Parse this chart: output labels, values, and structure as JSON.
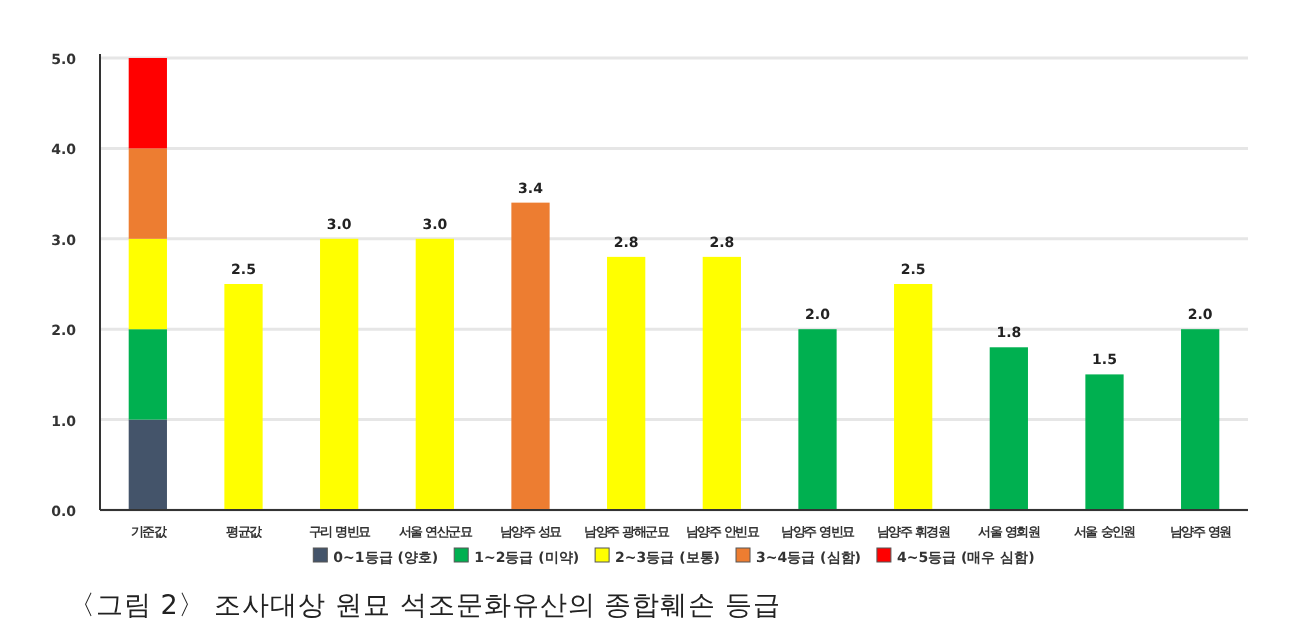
{
  "chart_data": {
    "type": "bar",
    "stacked": true,
    "categories": [
      "기준값",
      "평균값",
      "구리 명빈묘",
      "서울 연산군묘",
      "남양주 성묘",
      "남양주 광해군묘",
      "남양주 안빈묘",
      "남양주 영빈묘",
      "남양주 휘경원",
      "서울 영회원",
      "서울 숭인원",
      "남양주 영원"
    ],
    "series": [
      {
        "name": "0~1등급 (양호)",
        "color": "#44546a",
        "values": [
          1,
          null,
          null,
          null,
          null,
          null,
          null,
          null,
          null,
          null,
          null,
          null
        ]
      },
      {
        "name": "1~2등급 (미약)",
        "color": "#00b050",
        "values": [
          1,
          null,
          null,
          null,
          null,
          null,
          null,
          2.0,
          null,
          1.8,
          1.5,
          2.0
        ],
        "value_labels": [
          null,
          null,
          null,
          null,
          null,
          null,
          null,
          "2.0",
          null,
          "1.8",
          "1.5",
          "2.0"
        ]
      },
      {
        "name": "2~3등급 (보통)",
        "color": "#ffff00",
        "values": [
          1,
          2.5,
          3.0,
          3.0,
          null,
          2.8,
          2.8,
          null,
          2.5,
          null,
          null,
          null
        ],
        "value_labels": [
          null,
          "2.5",
          "3.0",
          "3.0",
          null,
          "2.8",
          "2.8",
          null,
          "2.5",
          null,
          null,
          null
        ]
      },
      {
        "name": "3~4등급 (심함)",
        "color": "#ed7d31",
        "values": [
          1,
          null,
          null,
          null,
          3.4,
          null,
          null,
          null,
          null,
          null,
          null,
          null
        ],
        "value_labels": [
          null,
          null,
          null,
          null,
          "3.4",
          null,
          null,
          null,
          null,
          null,
          null,
          null
        ]
      },
      {
        "name": "4~5등급 (매우 심함)",
        "color": "#ff0000",
        "values": [
          1,
          null,
          null,
          null,
          null,
          null,
          null,
          null,
          null,
          null,
          null,
          null
        ]
      }
    ],
    "ylim": [
      0,
      5
    ],
    "yticks": [
      {
        "value": 0,
        "label": "0.0"
      },
      {
        "value": 1,
        "label": "1.0"
      },
      {
        "value": 2,
        "label": "2.0"
      },
      {
        "value": 3,
        "label": "3.0"
      },
      {
        "value": 4,
        "label": "4.0"
      },
      {
        "value": 5,
        "label": "5.0"
      }
    ],
    "grid": "y",
    "legend": "bottom",
    "annotations": [
      "〈그림 2〉 조사대상 원묘 석조문화유산의 종합훼손 등급"
    ]
  }
}
